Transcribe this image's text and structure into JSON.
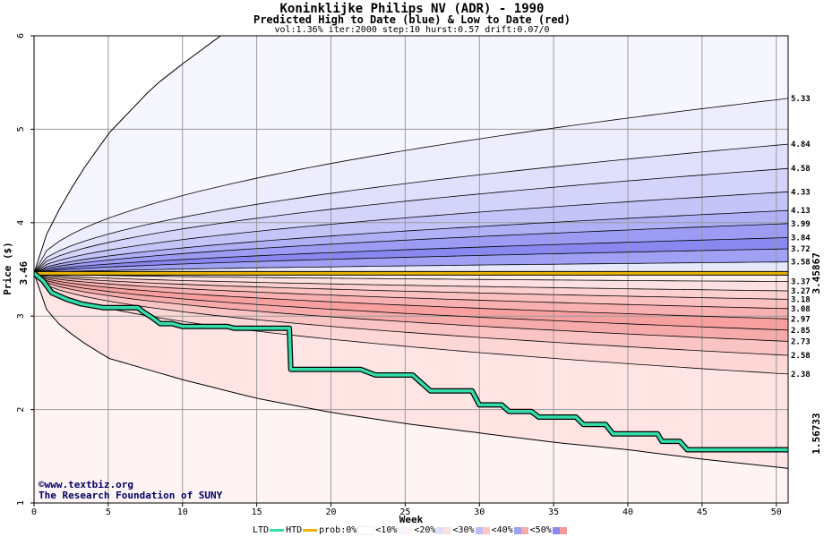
{
  "chart_data": {
    "type": "area",
    "title": "Koninklijke Philips NV (ADR) - 1990",
    "subtitle": "Predicted High to Date (blue) &  Low to Date (red)",
    "params": "vol:1.36% iter:2000 step:10 hurst:0.57 drift:0.07/0",
    "xlabel": "Week",
    "ylabel": "Price ($)",
    "xlim": [
      0,
      50.8
    ],
    "ylim": [
      1,
      6
    ],
    "x_ticks": [
      0,
      5,
      10,
      15,
      20,
      25,
      30,
      35,
      40,
      45,
      50
    ],
    "y_ticks": [
      1,
      2,
      3,
      4,
      5,
      6
    ],
    "start_price": 3.46,
    "start_label": "3.46",
    "high_final_levels": [
      "5.33",
      "4.84",
      "4.58",
      "4.33",
      "4.13",
      "3.99",
      "3.84",
      "3.72",
      "3.58"
    ],
    "high_outer_curve": [
      [
        0,
        3.46
      ],
      [
        1,
        3.95
      ],
      [
        3,
        4.5
      ],
      [
        5,
        4.95
      ],
      [
        8,
        5.45
      ],
      [
        10,
        5.7
      ],
      [
        13,
        6.05
      ]
    ],
    "low_final_levels": [
      "3.37",
      "3.27",
      "3.18",
      "3.08",
      "2.97",
      "2.85",
      "2.73",
      "2.58",
      "2.38"
    ],
    "low_outer_curve": [
      [
        0,
        3.46
      ],
      [
        1,
        3.0
      ],
      [
        3,
        2.75
      ],
      [
        5,
        2.55
      ],
      [
        10,
        2.32
      ],
      [
        15,
        2.12
      ],
      [
        20,
        1.97
      ],
      [
        25,
        1.85
      ],
      [
        30,
        1.75
      ],
      [
        35,
        1.65
      ],
      [
        40,
        1.57
      ],
      [
        45,
        1.47
      ],
      [
        50.8,
        1.37
      ]
    ],
    "horizontal_line": {
      "name": "HTD",
      "value": 3.45867,
      "label": "3.45867",
      "color": "#e8b400"
    },
    "ltd_line": {
      "name": "LTD",
      "color": "#33ddaa",
      "final_label": "1.56733",
      "points": [
        [
          0,
          3.46
        ],
        [
          0.6,
          3.38
        ],
        [
          1.2,
          3.25
        ],
        [
          2.2,
          3.18
        ],
        [
          3.2,
          3.13
        ],
        [
          4.7,
          3.09
        ],
        [
          7,
          3.09
        ],
        [
          7.4,
          3.04
        ],
        [
          8,
          2.98
        ],
        [
          8.5,
          2.92
        ],
        [
          9.3,
          2.92
        ],
        [
          10,
          2.89
        ],
        [
          13,
          2.89
        ],
        [
          13.5,
          2.87
        ],
        [
          17.2,
          2.87
        ],
        [
          17.3,
          2.43
        ],
        [
          18.5,
          2.43
        ],
        [
          22,
          2.43
        ],
        [
          23,
          2.37
        ],
        [
          25.5,
          2.37
        ],
        [
          26.7,
          2.2
        ],
        [
          29.5,
          2.2
        ],
        [
          30,
          2.05
        ],
        [
          31.5,
          2.05
        ],
        [
          32,
          1.98
        ],
        [
          33.5,
          1.98
        ],
        [
          34,
          1.92
        ],
        [
          36.5,
          1.92
        ],
        [
          37,
          1.84
        ],
        [
          38.5,
          1.84
        ],
        [
          39,
          1.74
        ],
        [
          42,
          1.74
        ],
        [
          42.3,
          1.66
        ],
        [
          43.5,
          1.66
        ],
        [
          44,
          1.57
        ],
        [
          50.8,
          1.57
        ]
      ]
    },
    "value_label_colors": {
      "start": "#000000",
      "htd": "#999900",
      "ltd": "#006633"
    },
    "legend": [
      "LTD",
      "HTD",
      "prob:0%",
      "<10%",
      "<20%",
      "<30%",
      "<40%",
      "<50%"
    ],
    "legend_colors": [
      "#33ddaa",
      "#e8b400",
      "#ffffff",
      "#f6f6ff",
      "#ddddfe",
      "#ffd4d4",
      "#f49a9a",
      "#8888f0"
    ],
    "credit": [
      "©www.textbiz.org",
      "The Research Foundation of SUNY"
    ]
  }
}
